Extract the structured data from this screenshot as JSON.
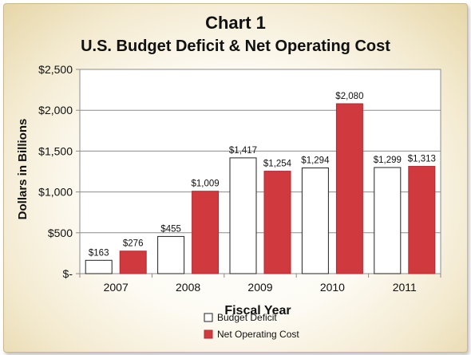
{
  "chart_data": {
    "type": "bar",
    "title": "Chart 1",
    "subtitle": "U.S. Budget Deficit & Net Operating Cost",
    "xlabel": "Fiscal Year",
    "ylabel": "Dollars in Billions",
    "categories": [
      "2007",
      "2008",
      "2009",
      "2010",
      "2011"
    ],
    "series": [
      {
        "name": "Budget Deficit",
        "values": [
          163,
          455,
          1417,
          1294,
          1299
        ],
        "labels": [
          "$163",
          "$455",
          "$1,417",
          "$1,294",
          "$1,299"
        ],
        "color": "#ffffff"
      },
      {
        "name": "Net Operating Cost",
        "values": [
          276,
          1009,
          1254,
          2080,
          1313
        ],
        "labels": [
          "$276",
          "$1,009",
          "$1,254",
          "$2,080",
          "$1,313"
        ],
        "color": "#d0393e"
      }
    ],
    "ylim": [
      0,
      2500
    ],
    "yticks": [
      0,
      500,
      1000,
      1500,
      2000,
      2500
    ],
    "ytick_labels": [
      "$-",
      "$500",
      "$1,000",
      "$1,500",
      "$2,000",
      "$2,500"
    ],
    "grid": true,
    "legend_position": "bottom"
  }
}
